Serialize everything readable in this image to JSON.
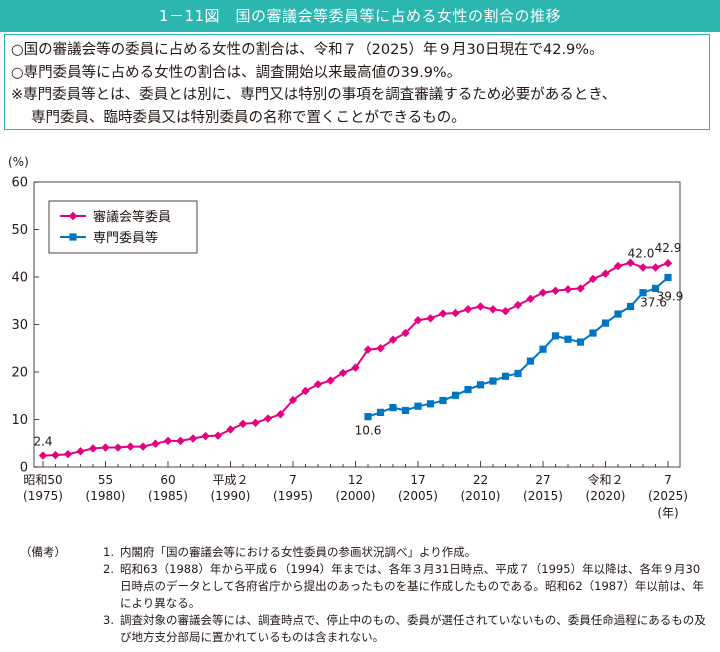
{
  "header": {
    "title": "1－11図　国の審議会等委員等に占める女性の割合の推移"
  },
  "summary": {
    "line1": "○国の審議会等の委員に占める女性の割合は、令和７（2025）年９月30日現在で42.9%。",
    "line2": "○専門委員等に占める女性の割合は、調査開始以来最高値の39.9%。",
    "line3": "※専門委員等とは、委員とは別に、専門又は特別の事項を調査審議するため必要があるとき、",
    "line4": "専門委員、臨時委員又は特別委員の名称で置くことができるもの。"
  },
  "chart_data": {
    "type": "line",
    "ylabel": "(%)",
    "xunit": "(年)",
    "ylim": [
      0,
      60
    ],
    "yticks": [
      "0",
      "10",
      "20",
      "30",
      "40",
      "50",
      "60"
    ],
    "xlim": [
      1975,
      2025
    ],
    "xticks": [
      {
        "x": 1975,
        "top": "昭和50",
        "bottom": "(1975)"
      },
      {
        "x": 1980,
        "top": "55",
        "bottom": "(1980)"
      },
      {
        "x": 1985,
        "top": "60",
        "bottom": "(1985)"
      },
      {
        "x": 1990,
        "top": "平成２",
        "bottom": "(1990)"
      },
      {
        "x": 1995,
        "top": "7",
        "bottom": "(1995)"
      },
      {
        "x": 2000,
        "top": "12",
        "bottom": "(2000)"
      },
      {
        "x": 2005,
        "top": "17",
        "bottom": "(2005)"
      },
      {
        "x": 2010,
        "top": "22",
        "bottom": "(2010)"
      },
      {
        "x": 2015,
        "top": "27",
        "bottom": "(2015)"
      },
      {
        "x": 2020,
        "top": "令和２",
        "bottom": "(2020)"
      },
      {
        "x": 2025,
        "top": "7",
        "bottom": "(2025)"
      }
    ],
    "legend_position": "top-left",
    "series": [
      {
        "name": "審議会等委員",
        "color": "#e4007f",
        "marker": "diamond",
        "x": [
          1975,
          1976,
          1977,
          1978,
          1979,
          1980,
          1981,
          1982,
          1983,
          1984,
          1985,
          1986,
          1987,
          1988,
          1989,
          1990,
          1991,
          1992,
          1993,
          1994,
          1995,
          1996,
          1997,
          1998,
          1999,
          2000,
          2001,
          2002,
          2003,
          2004,
          2005,
          2006,
          2007,
          2008,
          2009,
          2010,
          2011,
          2012,
          2013,
          2014,
          2015,
          2016,
          2017,
          2018,
          2019,
          2020,
          2021,
          2022,
          2023,
          2024,
          2025
        ],
        "values": [
          2.4,
          2.5,
          2.7,
          3.3,
          3.9,
          4.1,
          4.1,
          4.3,
          4.3,
          4.9,
          5.5,
          5.5,
          6.0,
          6.5,
          6.6,
          7.9,
          9.1,
          9.3,
          10.2,
          11.1,
          14.1,
          16.0,
          17.4,
          18.2,
          19.8,
          20.9,
          24.7,
          25.0,
          26.8,
          28.2,
          30.9,
          31.3,
          32.3,
          32.4,
          33.2,
          33.8,
          33.2,
          32.8,
          34.1,
          35.4,
          36.7,
          37.1,
          37.4,
          37.6,
          39.6,
          40.7,
          42.3,
          43.0,
          42.0,
          42.0,
          42.9
        ]
      },
      {
        "name": "専門委員等",
        "color": "#0075c2",
        "marker": "square",
        "x": [
          2001,
          2002,
          2003,
          2004,
          2005,
          2006,
          2007,
          2008,
          2009,
          2010,
          2011,
          2012,
          2013,
          2014,
          2015,
          2016,
          2017,
          2018,
          2019,
          2020,
          2021,
          2022,
          2023,
          2024,
          2025
        ],
        "values": [
          10.6,
          11.5,
          12.5,
          11.9,
          12.8,
          13.3,
          14.0,
          15.1,
          16.3,
          17.3,
          18.1,
          19.1,
          19.7,
          22.3,
          24.8,
          27.6,
          26.9,
          26.3,
          28.2,
          30.3,
          32.2,
          33.8,
          36.7,
          37.6,
          39.9
        ]
      }
    ],
    "annotations": [
      {
        "series": 0,
        "x": 1975,
        "label": "2.4"
      },
      {
        "series": 0,
        "x": 2023,
        "label": "42.0"
      },
      {
        "series": 0,
        "x": 2025,
        "label": "42.9"
      },
      {
        "series": 1,
        "x": 2001,
        "label": "10.6"
      },
      {
        "series": 1,
        "x": 2024,
        "label": "37.6"
      },
      {
        "series": 1,
        "x": 2025,
        "label": "39.9"
      }
    ]
  },
  "notes": {
    "tag": "（備考）",
    "items": [
      {
        "num": "1.",
        "text": "内閣府「国の審議会等における女性委員の参画状況調べ」より作成。"
      },
      {
        "num": "2.",
        "text": "昭和63（1988）年から平成６（1994）年までは、各年３月31日時点、平成７（1995）年以降は、各年９月30日時点のデータとして各府省庁から提出のあったものを基に作成したものである。昭和62（1987）年以前は、年により異なる。"
      },
      {
        "num": "3.",
        "text": "調査対象の審議会等には、調査時点で、停止中のもの、委員が選任されていないもの、委員任命過程にあるもの及び地方支分部局に置かれているものは含まれない。"
      }
    ]
  }
}
